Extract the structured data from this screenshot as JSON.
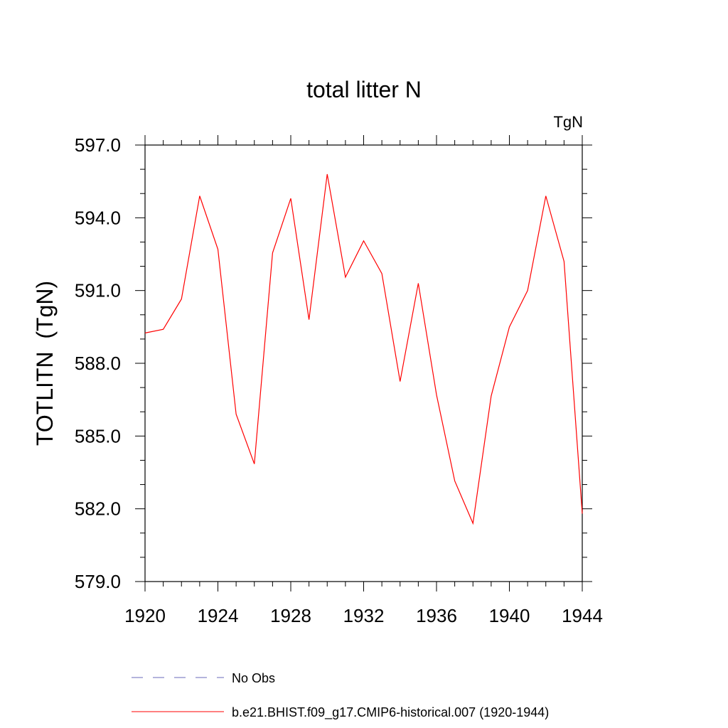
{
  "chart_data": {
    "type": "line",
    "title": "total litter N",
    "units_label": "TgN",
    "xlabel": "",
    "ylabel": "TOTLITN  (TgN)",
    "xlim": [
      1920,
      1944
    ],
    "ylim": [
      579.0,
      597.0
    ],
    "x_ticks": [
      1920,
      1924,
      1928,
      1932,
      1936,
      1940,
      1944
    ],
    "x_tick_labels": [
      "1920",
      "1924",
      "1928",
      "1932",
      "1936",
      "1940",
      "1944"
    ],
    "y_ticks": [
      579.0,
      582.0,
      585.0,
      588.0,
      591.0,
      594.0,
      597.0
    ],
    "y_tick_labels": [
      "579.0",
      "582.0",
      "585.0",
      "588.0",
      "591.0",
      "594.0",
      "597.0"
    ],
    "grid": false,
    "legend_position": "bottom",
    "series": [
      {
        "name": "b.e21.BHIST.f09_g17.CMIP6-historical.007 (1920-1944)",
        "color": "#ff0000",
        "style": "solid",
        "x": [
          1920,
          1921,
          1922,
          1923,
          1924,
          1925,
          1926,
          1927,
          1928,
          1929,
          1930,
          1931,
          1932,
          1933,
          1934,
          1935,
          1936,
          1937,
          1938,
          1939,
          1940,
          1941,
          1942,
          1943,
          1944
        ],
        "values": [
          589.25,
          589.4,
          590.65,
          594.9,
          592.7,
          585.9,
          583.85,
          592.55,
          594.8,
          589.8,
          595.8,
          591.55,
          593.05,
          591.7,
          587.25,
          591.3,
          586.7,
          583.15,
          581.4,
          586.65,
          589.5,
          591.0,
          594.9,
          592.2,
          581.8
        ]
      }
    ],
    "legend": [
      {
        "label": "No Obs",
        "color": "#6a6ab8",
        "style": "dashed"
      },
      {
        "label": "b.e21.BHIST.f09_g17.CMIP6-historical.007 (1920-1944)",
        "color": "#ff0000",
        "style": "solid"
      }
    ]
  }
}
